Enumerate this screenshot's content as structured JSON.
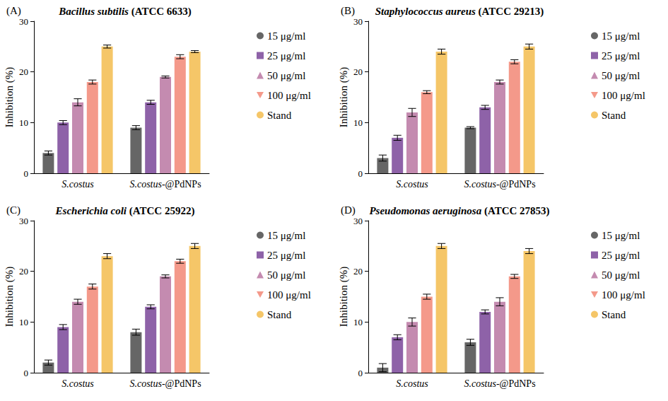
{
  "chart_data": [
    {
      "type": "bar",
      "panel_label": "(A)",
      "title": "Bacillus subtilis (ATCC 6633)",
      "categories": [
        "S.costus",
        "S.costus-@PdNPs"
      ],
      "y_label": "Inhibition (%)",
      "ylim": [
        0,
        30
      ],
      "yticks": [
        0,
        10,
        20,
        30
      ],
      "grid": false,
      "legend": "right",
      "series": [
        {
          "name": "15 μg/ml",
          "color": "#666666",
          "marker": "circle",
          "values": [
            4,
            9
          ],
          "errors": [
            0.4,
            0.4
          ]
        },
        {
          "name": "25 μg/ml",
          "color": "#8e62a8",
          "marker": "square",
          "values": [
            10,
            14
          ],
          "errors": [
            0.4,
            0.4
          ]
        },
        {
          "name": "50 μg/ml",
          "color": "#c48bb0",
          "marker": "triangle",
          "values": [
            14,
            19
          ],
          "errors": [
            0.7,
            0.2
          ]
        },
        {
          "name": "100 μg/ml",
          "color": "#f4998a",
          "marker": "triangle-down",
          "values": [
            18,
            23
          ],
          "errors": [
            0.4,
            0.4
          ]
        },
        {
          "name": "Stand",
          "color": "#f5c668",
          "marker": "circle",
          "values": [
            25,
            24
          ],
          "errors": [
            0.3,
            0.2
          ]
        }
      ]
    },
    {
      "type": "bar",
      "panel_label": "(B)",
      "title": "Staphylococcus aureus (ATCC 29213)",
      "categories": [
        "S.costus",
        "S.costus-@PdNPs"
      ],
      "y_label": "Inhibition (%)",
      "ylim": [
        0,
        30
      ],
      "yticks": [
        0,
        10,
        20,
        30
      ],
      "grid": false,
      "legend": "right",
      "series": [
        {
          "name": "15 μg/ml",
          "color": "#666666",
          "marker": "circle",
          "values": [
            3,
            9
          ],
          "errors": [
            0.6,
            0.2
          ]
        },
        {
          "name": "25 μg/ml",
          "color": "#8e62a8",
          "marker": "square",
          "values": [
            7,
            13
          ],
          "errors": [
            0.5,
            0.4
          ]
        },
        {
          "name": "50 μg/ml",
          "color": "#c48bb0",
          "marker": "triangle",
          "values": [
            12,
            18
          ],
          "errors": [
            0.8,
            0.4
          ]
        },
        {
          "name": "100 μg/ml",
          "color": "#f4998a",
          "marker": "triangle-down",
          "values": [
            16,
            22
          ],
          "errors": [
            0.3,
            0.4
          ]
        },
        {
          "name": "Stand",
          "color": "#f5c668",
          "marker": "circle",
          "values": [
            24,
            25
          ],
          "errors": [
            0.5,
            0.5
          ]
        }
      ]
    },
    {
      "type": "bar",
      "panel_label": "(C)",
      "title": "Escherichia coli (ATCC 25922)",
      "categories": [
        "S.costus",
        "S.costus-@PdNPs"
      ],
      "y_label": "Inhibition (%)",
      "ylim": [
        0,
        30
      ],
      "yticks": [
        0,
        10,
        20,
        30
      ],
      "grid": false,
      "legend": "right",
      "series": [
        {
          "name": "15 μg/ml",
          "color": "#666666",
          "marker": "circle",
          "values": [
            2,
            8
          ],
          "errors": [
            0.5,
            0.6
          ]
        },
        {
          "name": "25 μg/ml",
          "color": "#8e62a8",
          "marker": "square",
          "values": [
            9,
            13
          ],
          "errors": [
            0.5,
            0.4
          ]
        },
        {
          "name": "50 μg/ml",
          "color": "#c48bb0",
          "marker": "triangle",
          "values": [
            14,
            19
          ],
          "errors": [
            0.5,
            0.3
          ]
        },
        {
          "name": "100 μg/ml",
          "color": "#f4998a",
          "marker": "triangle-down",
          "values": [
            17,
            22
          ],
          "errors": [
            0.5,
            0.4
          ]
        },
        {
          "name": "Stand",
          "color": "#f5c668",
          "marker": "circle",
          "values": [
            23,
            25
          ],
          "errors": [
            0.5,
            0.5
          ]
        }
      ]
    },
    {
      "type": "bar",
      "panel_label": "(D)",
      "title": "Pseudomonas aeruginosa (ATCC 27853)",
      "categories": [
        "S.costus",
        "S.costus-@PdNPs"
      ],
      "y_label": "Inhibition (%)",
      "ylim": [
        0,
        30
      ],
      "yticks": [
        0,
        10,
        20,
        30
      ],
      "grid": false,
      "legend": "right",
      "series": [
        {
          "name": "15 μg/ml",
          "color": "#666666",
          "marker": "circle",
          "values": [
            1,
            6
          ],
          "errors": [
            0.8,
            0.6
          ]
        },
        {
          "name": "25 μg/ml",
          "color": "#8e62a8",
          "marker": "square",
          "values": [
            7,
            12
          ],
          "errors": [
            0.5,
            0.4
          ]
        },
        {
          "name": "50 μg/ml",
          "color": "#c48bb0",
          "marker": "triangle",
          "values": [
            10,
            14
          ],
          "errors": [
            0.8,
            0.8
          ]
        },
        {
          "name": "100 μg/ml",
          "color": "#f4998a",
          "marker": "triangle-down",
          "values": [
            15,
            19
          ],
          "errors": [
            0.5,
            0.4
          ]
        },
        {
          "name": "Stand",
          "color": "#f5c668",
          "marker": "circle",
          "values": [
            25,
            24
          ],
          "errors": [
            0.5,
            0.5
          ]
        }
      ]
    }
  ]
}
